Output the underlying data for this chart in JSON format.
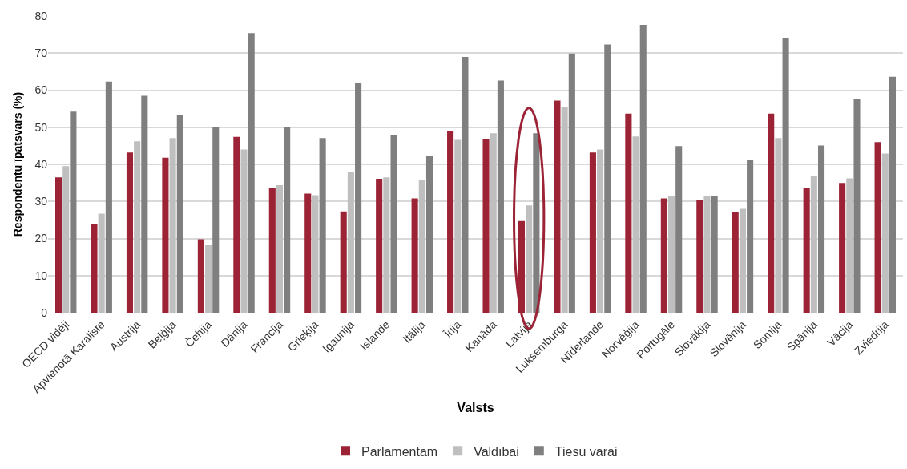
{
  "chart_data": {
    "type": "bar",
    "xlabel": "Valsts",
    "ylabel": "Respondentu īpatsvars (%)",
    "categories": [
      "OECD vidēji",
      "Apvienotā Karaliste",
      "Austrija",
      "Beļģija",
      "Čehija",
      "Dānija",
      "Francija",
      "Grieķija",
      "Igaunija",
      "Islande",
      "Itālija",
      "Īrija",
      "Kanāda",
      "Latvija",
      "Luksemburga",
      "Nīderlande",
      "Norvēģija",
      "Portugāle",
      "Slovākija",
      "Slovēnija",
      "Somija",
      "Spānija",
      "Vācija",
      "Zviedrija"
    ],
    "series": [
      {
        "name": "Parlamentam",
        "color": "#9b2335",
        "values": [
          36.5,
          24,
          43.2,
          41.8,
          19.8,
          47.4,
          33.5,
          32.1,
          27.3,
          36.1,
          30.8,
          49.1,
          46.9,
          24.7,
          57.2,
          43.2,
          53.7,
          30.8,
          30.4,
          27.1,
          53.7,
          33.7,
          35,
          46
        ]
      },
      {
        "name": "Valdībai",
        "color": "#bfbfbf",
        "values": [
          39.5,
          26.7,
          46.2,
          47.1,
          18.4,
          44,
          34.4,
          31.7,
          37.9,
          36.5,
          35.9,
          46.6,
          48.4,
          28.9,
          55.5,
          44,
          47.5,
          31.5,
          31.5,
          28,
          47.1,
          36.8,
          36.2,
          42.9
        ]
      },
      {
        "name": "Tiesu varai",
        "color": "#7f7f7f",
        "values": [
          54.2,
          62.3,
          58.5,
          53.3,
          50,
          75.4,
          50,
          47.1,
          61.9,
          48,
          42.4,
          69,
          62.6,
          48.4,
          69.9,
          72.3,
          77.6,
          44.9,
          31.5,
          41.2,
          74.1,
          45.1,
          57.6,
          63.6
        ]
      }
    ],
    "ylim": [
      0,
      80
    ],
    "yticks": [
      0,
      10,
      20,
      30,
      40,
      50,
      60,
      70,
      80
    ],
    "grid": "y",
    "legend": "bottom"
  }
}
